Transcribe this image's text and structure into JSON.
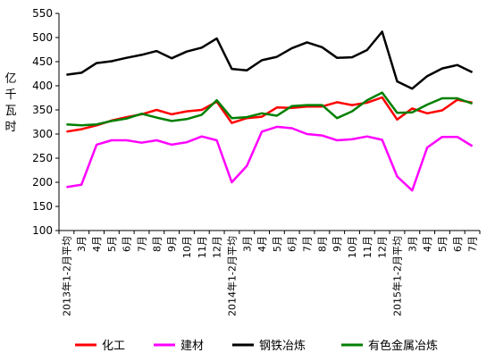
{
  "chart_data": {
    "type": "line",
    "title": "",
    "xlabel": "",
    "ylabel": "亿千瓦时",
    "ylim": [
      100,
      550
    ],
    "yticks": [
      100,
      150,
      200,
      250,
      300,
      350,
      400,
      450,
      500,
      550
    ],
    "grid": false,
    "legend_position": "bottom",
    "categories": [
      "2013年1-2月平均",
      "3月",
      "4月",
      "5月",
      "6月",
      "7月",
      "8月",
      "9月",
      "10月",
      "11月",
      "12月",
      "2014年1-2月平均",
      "3月",
      "4月",
      "5月",
      "6月",
      "7月",
      "8月",
      "9月",
      "10月",
      "11月",
      "12月",
      "2015年1-2月平均",
      "3月",
      "4月",
      "5月",
      "6月",
      "7月"
    ],
    "series": [
      {
        "name": "化工",
        "color": "#ff0000",
        "values": [
          305,
          310,
          318,
          328,
          335,
          341,
          350,
          341,
          347,
          350,
          367,
          323,
          333,
          336,
          355,
          354,
          357,
          357,
          366,
          360,
          365,
          376,
          330,
          353,
          343,
          349,
          371,
          365
        ]
      },
      {
        "name": "建材",
        "color": "#ff00ff",
        "values": [
          190,
          195,
          278,
          287,
          287,
          282,
          287,
          278,
          283,
          295,
          287,
          200,
          234,
          305,
          315,
          312,
          300,
          297,
          287,
          289,
          295,
          288,
          212,
          183,
          272,
          294,
          294,
          275
        ]
      },
      {
        "name": "钢铁冶炼",
        "color": "#000000",
        "values": [
          423,
          427,
          447,
          451,
          458,
          464,
          472,
          457,
          471,
          479,
          498,
          435,
          432,
          453,
          460,
          478,
          490,
          480,
          458,
          459,
          474,
          512,
          409,
          394,
          420,
          436,
          443,
          428
        ]
      },
      {
        "name": "有色金属冶炼",
        "color": "#008000",
        "values": [
          320,
          318,
          320,
          327,
          332,
          342,
          334,
          327,
          331,
          340,
          370,
          333,
          335,
          343,
          338,
          358,
          360,
          360,
          333,
          347,
          370,
          386,
          344,
          345,
          361,
          374,
          374,
          363
        ]
      }
    ]
  }
}
